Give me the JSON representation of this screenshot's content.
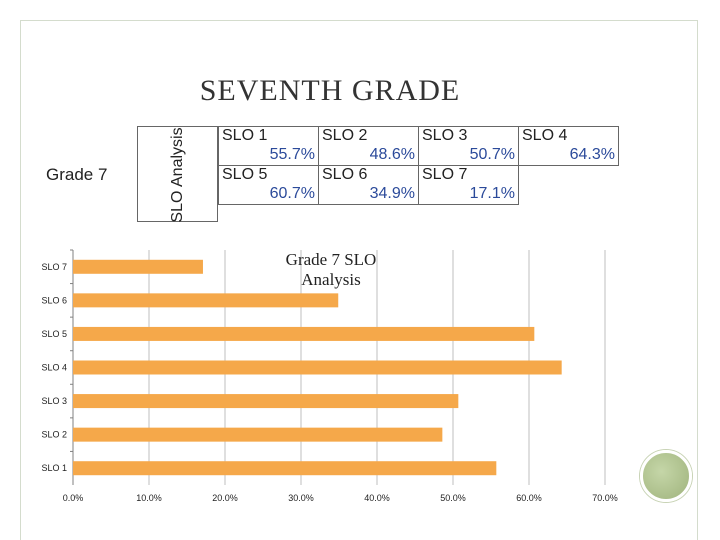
{
  "slide": {
    "title": "SEVENTH GRADE",
    "grade_label": "Grade 7",
    "table_header": "SLO Analysis"
  },
  "slo_table": [
    [
      {
        "name": "SLO 1",
        "pct": "55.7%"
      },
      {
        "name": "SLO 2",
        "pct": "48.6%"
      },
      {
        "name": "SLO 3",
        "pct": "50.7%"
      },
      {
        "name": "SLO 4",
        "pct": "64.3%"
      }
    ],
    [
      {
        "name": "SLO 5",
        "pct": "60.7%"
      },
      {
        "name": "SLO 6",
        "pct": "34.9%"
      },
      {
        "name": "SLO 7",
        "pct": "17.1%"
      }
    ]
  ],
  "colors": {
    "bar": "#f5a84a",
    "grid": "#bfbfbf",
    "percent_text": "#2b4a9a"
  },
  "chart_data": {
    "type": "bar",
    "orientation": "horizontal",
    "title": "Grade 7 SLO Analysis",
    "categories": [
      "SLO 1",
      "SLO 2",
      "SLO 3",
      "SLO 4",
      "SLO 5",
      "SLO 6",
      "SLO 7"
    ],
    "values": [
      55.7,
      48.6,
      50.7,
      64.3,
      60.7,
      34.9,
      17.1
    ],
    "xlim": [
      0,
      70
    ],
    "xticks": [
      "0.0%",
      "10.0%",
      "20.0%",
      "30.0%",
      "40.0%",
      "50.0%",
      "60.0%",
      "70.0%"
    ],
    "grid": true,
    "legend": "none"
  }
}
